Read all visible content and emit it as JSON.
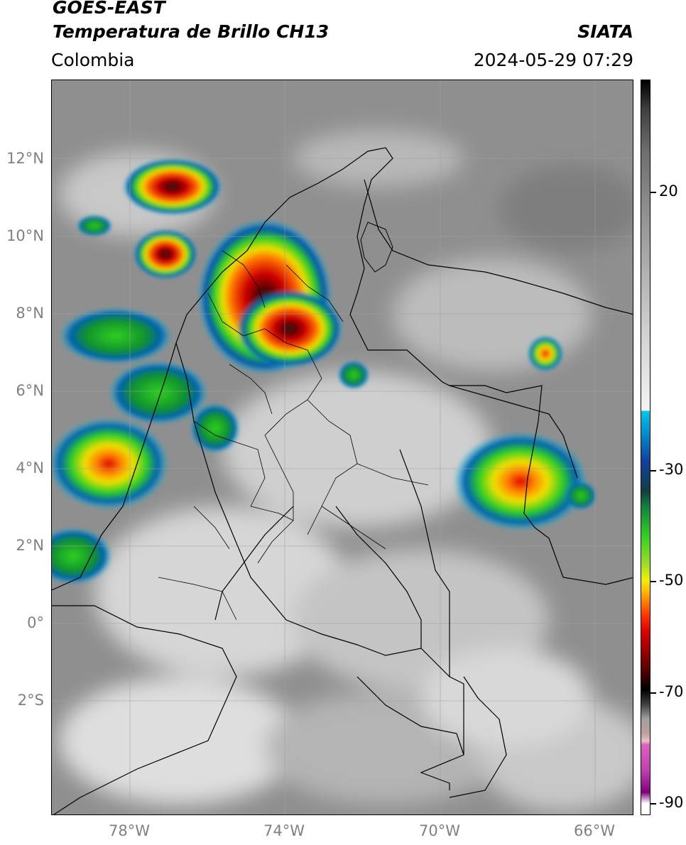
{
  "header": {
    "satellite": "GOES-EAST",
    "product": "Temperatura de Brillo CH13",
    "region": "Colombia",
    "organization": "SIATA",
    "timestamp": "2024-05-29 07:29"
  },
  "map": {
    "lat_labels": [
      "12°N",
      "10°N",
      "8°N",
      "6°N",
      "4°N",
      "2°N",
      "0°",
      "2°S"
    ],
    "lon_labels": [
      "78°W",
      "74°W",
      "70°W",
      "66°W"
    ]
  },
  "colorbar": {
    "labels": [
      "20",
      "-30",
      "-50",
      "-70",
      "-90"
    ],
    "colors": {
      "warm_gray": "#8c8c8c",
      "light_gray": "#e8e8e8",
      "cyan": "#00c8e8",
      "blue": "#1040a0",
      "green": "#30d020",
      "yellow": "#f0f000",
      "orange": "#ff8000",
      "red": "#e00000",
      "dark_red": "#600000",
      "black": "#000000",
      "pink": "#e060c0",
      "purple": "#800080",
      "white": "#ffffff"
    }
  }
}
